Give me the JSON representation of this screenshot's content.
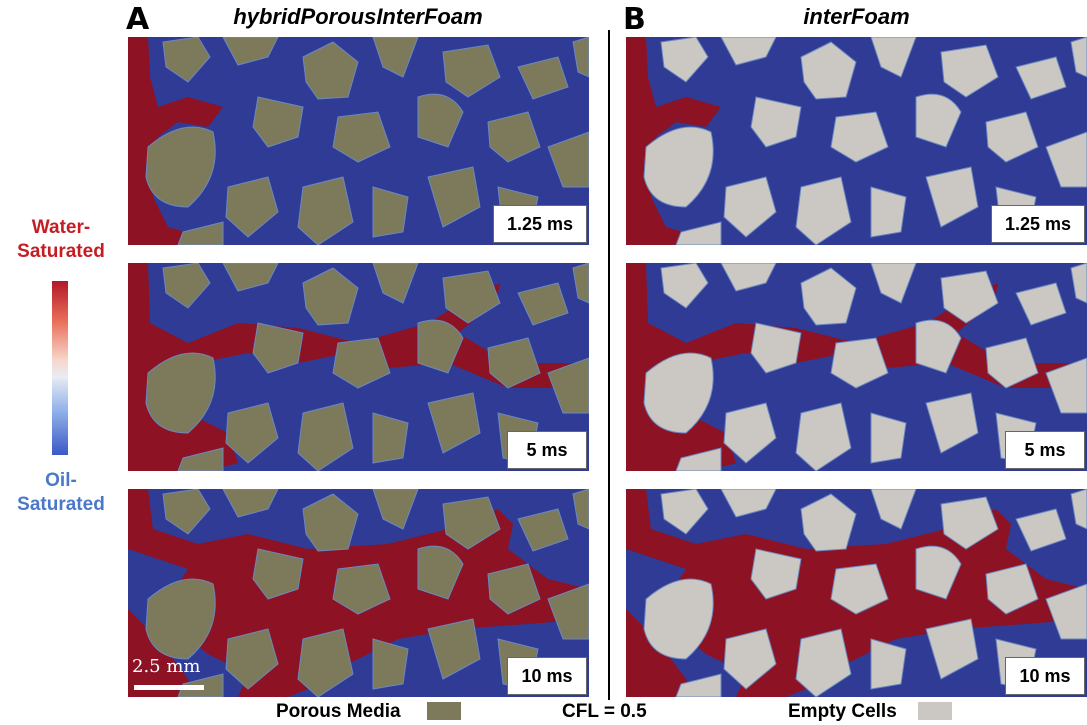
{
  "panels": [
    {
      "letter": "A",
      "title": "hybridPorousInterFoam",
      "solid_color": "#7d7a5c"
    },
    {
      "letter": "B",
      "title": "interFoam",
      "solid_color": "#cbc7c2"
    }
  ],
  "times": [
    "1.25 ms",
    "5 ms",
    "10 ms"
  ],
  "legend": {
    "top_line1": "Water-",
    "top_line2": "Saturated",
    "bottom_line1": "Oil-",
    "bottom_line2": "Saturated"
  },
  "scale_bar": {
    "label": "2.5 mm"
  },
  "footer": {
    "porous_label": "Porous Media",
    "cfl_label": "CFL = 0.5",
    "empty_label": "Empty Cells"
  },
  "colors": {
    "oil": "#2f3b95",
    "water": "#8c1224",
    "porous": "#7d7a5c",
    "empty": "#cbc7c2"
  }
}
